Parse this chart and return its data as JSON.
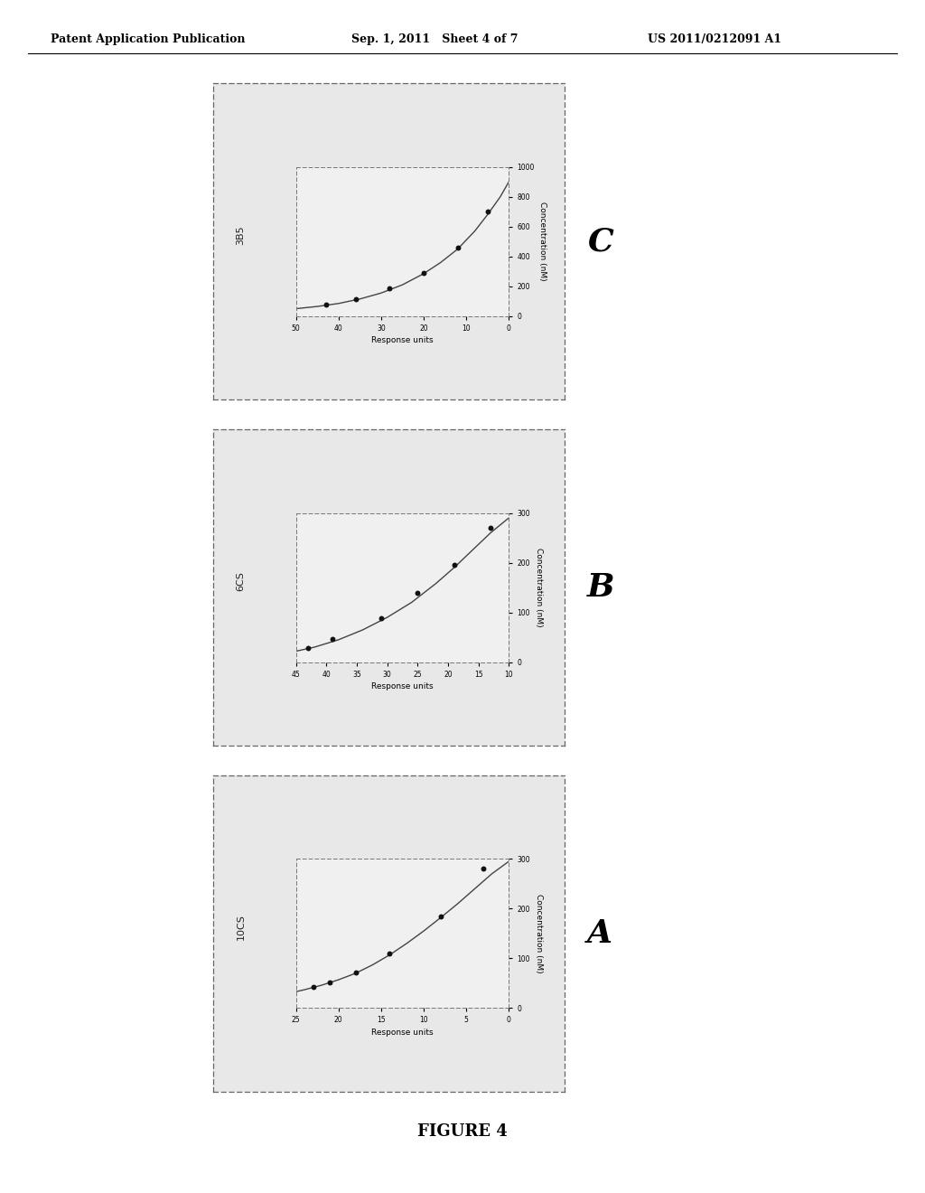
{
  "title": "FIGURE 4",
  "patent_header_left": "Patent Application Publication",
  "patent_header_mid": "Sep. 1, 2011   Sheet 4 of 7",
  "patent_header_right": "US 2011/0212091 A1",
  "panel_C": {
    "label": "C",
    "subplot_label": "3B5",
    "x_label": "Response units",
    "y_label": "Concentration (nM)",
    "x_ticks": [
      0,
      10,
      20,
      30,
      40,
      50
    ],
    "x_ticklabels": [
      "0",
      "10",
      "20",
      "30",
      "40",
      "50"
    ],
    "y_ticks": [
      0,
      200,
      400,
      600,
      800,
      1000
    ],
    "y_ticklabels": [
      "0",
      "200",
      "400",
      "600",
      "800",
      "1000"
    ],
    "y_max": 1000,
    "x_min": 0,
    "x_max": 50,
    "curve_x": [
      0,
      2,
      5,
      8,
      12,
      16,
      20,
      25,
      30,
      35,
      40,
      45,
      50
    ],
    "curve_y": [
      900,
      800,
      680,
      570,
      450,
      360,
      285,
      210,
      155,
      115,
      85,
      65,
      50
    ],
    "points_x": [
      5,
      12,
      20,
      28,
      36,
      43
    ],
    "points_y": [
      700,
      460,
      290,
      185,
      115,
      78
    ]
  },
  "panel_B": {
    "label": "B",
    "subplot_label": "6CS",
    "x_label": "Response units",
    "y_label": "Concentration (nM)",
    "x_ticks": [
      10,
      15,
      20,
      25,
      30,
      35,
      40,
      45
    ],
    "x_ticklabels": [
      "10",
      "15",
      "20",
      "25",
      "30",
      "35",
      "40",
      "45"
    ],
    "y_ticks": [
      0,
      100,
      200,
      300
    ],
    "y_ticklabels": [
      "0",
      "100",
      "200",
      "300"
    ],
    "y_max": 300,
    "x_min": 10,
    "x_max": 45,
    "curve_x": [
      10,
      13,
      16,
      19,
      22,
      26,
      30,
      34,
      38,
      42,
      45
    ],
    "curve_y": [
      290,
      260,
      225,
      190,
      158,
      120,
      90,
      65,
      45,
      30,
      22
    ],
    "points_x": [
      13,
      19,
      25,
      31,
      39,
      43
    ],
    "points_y": [
      270,
      195,
      140,
      88,
      46,
      28
    ]
  },
  "panel_A": {
    "label": "A",
    "subplot_label": "10CS",
    "x_label": "Response units",
    "y_label": "Concentration (nM)",
    "x_ticks": [
      0,
      5,
      10,
      15,
      20,
      25
    ],
    "x_ticklabels": [
      "0",
      "5",
      "10",
      "15",
      "20",
      "25"
    ],
    "y_ticks": [
      0,
      100,
      200,
      300
    ],
    "y_ticklabels": [
      "0",
      "100",
      "200",
      "300"
    ],
    "y_max": 300,
    "x_min": 0,
    "x_max": 25,
    "curve_x": [
      0,
      2,
      4,
      6,
      8,
      10,
      12,
      14,
      16,
      18,
      20,
      22,
      24,
      25
    ],
    "curve_y": [
      295,
      270,
      240,
      210,
      182,
      155,
      130,
      107,
      87,
      70,
      57,
      46,
      37,
      33
    ],
    "points_x": [
      3,
      8,
      14,
      18,
      21,
      23
    ],
    "points_y": [
      280,
      185,
      110,
      72,
      52,
      42
    ]
  },
  "bg_color": "#ffffff",
  "outer_bg": "#e8e8e8",
  "inner_bg": "#f0f0f0",
  "curve_color": "#444444",
  "point_color": "#111111"
}
